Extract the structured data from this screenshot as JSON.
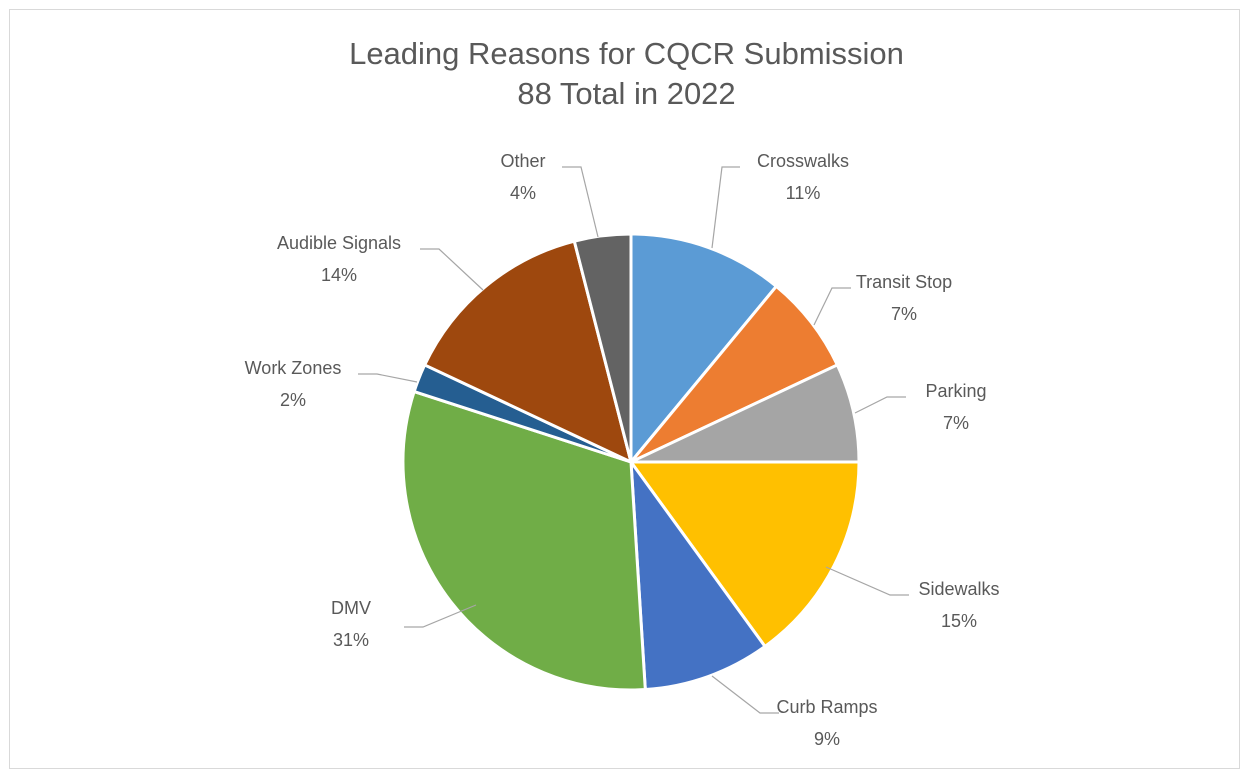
{
  "chart_data": {
    "type": "pie",
    "title": "Leading Reasons for CQCR Submission",
    "subtitle": "88 Total in 2022",
    "slices": [
      {
        "label": "Crosswalks",
        "percent_label": "11%",
        "value": 11,
        "color": "#5b9bd5"
      },
      {
        "label": "Transit Stop",
        "percent_label": "7%",
        "value": 7,
        "color": "#ed7d31"
      },
      {
        "label": "Parking",
        "percent_label": "7%",
        "value": 7,
        "color": "#a5a5a5"
      },
      {
        "label": "Sidewalks",
        "percent_label": "15%",
        "value": 15,
        "color": "#ffc000"
      },
      {
        "label": "Curb Ramps",
        "percent_label": "9%",
        "value": 9,
        "color": "#4472c4"
      },
      {
        "label": "DMV",
        "percent_label": "31%",
        "value": 31,
        "color": "#70ad47"
      },
      {
        "label": "Work Zones",
        "percent_label": "2%",
        "value": 2,
        "color": "#255e91"
      },
      {
        "label": "Audible Signals",
        "percent_label": "14%",
        "value": 14,
        "color": "#9e480e"
      },
      {
        "label": "Other",
        "percent_label": "4%",
        "value": 4,
        "color": "#636363"
      }
    ]
  }
}
